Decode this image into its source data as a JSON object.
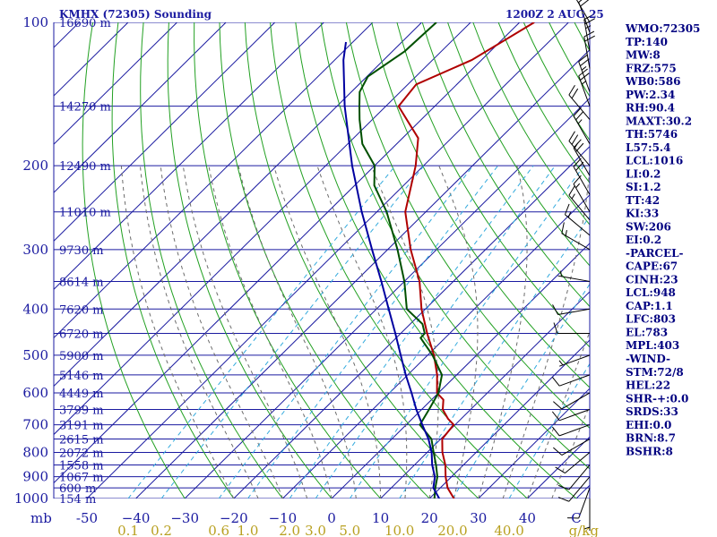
{
  "header": {
    "station": "KMHX (72305) Sounding",
    "time": "1200Z  2 AUG 25"
  },
  "chart_data": {
    "type": "skew-t",
    "p_min": 100,
    "p_max": 1000,
    "pressure_unit_label": "mb",
    "pressure_ticks": [
      {
        "p": 100,
        "label": "100"
      },
      {
        "p": 200,
        "label": "200"
      },
      {
        "p": 300,
        "label": "300"
      },
      {
        "p": 400,
        "label": "400"
      },
      {
        "p": 500,
        "label": "500"
      },
      {
        "p": 600,
        "label": "600"
      },
      {
        "p": 700,
        "label": "700"
      },
      {
        "p": 800,
        "label": "800"
      },
      {
        "p": 900,
        "label": "900"
      },
      {
        "p": 1000,
        "label": "1000"
      }
    ],
    "height_labels": [
      {
        "p": 100,
        "label": "16690 m"
      },
      {
        "p": 150,
        "label": "14270 m"
      },
      {
        "p": 200,
        "label": "12490 m"
      },
      {
        "p": 250,
        "label": "11010 m"
      },
      {
        "p": 300,
        "label": "9730 m"
      },
      {
        "p": 350,
        "label": "8614 m"
      },
      {
        "p": 400,
        "label": "7620 m"
      },
      {
        "p": 450,
        "label": "6720 m"
      },
      {
        "p": 500,
        "label": "5900 m"
      },
      {
        "p": 550,
        "label": "5146 m"
      },
      {
        "p": 600,
        "label": "4449 m"
      },
      {
        "p": 650,
        "label": "3799 m"
      },
      {
        "p": 700,
        "label": "3191 m"
      },
      {
        "p": 750,
        "label": "2615 m"
      },
      {
        "p": 800,
        "label": "2072 m"
      },
      {
        "p": 850,
        "label": "1558 m"
      },
      {
        "p": 900,
        "label": "1067 m"
      },
      {
        "p": 950,
        "label": "600 m"
      },
      {
        "p": 1000,
        "label": "154 m"
      }
    ],
    "temperature_ticks": [
      {
        "t": -50,
        "label": "-50"
      },
      {
        "t": -40,
        "label": "−40"
      },
      {
        "t": -30,
        "label": "−30"
      },
      {
        "t": -20,
        "label": "−20"
      },
      {
        "t": -10,
        "label": "−10"
      },
      {
        "t": 0,
        "label": "0"
      },
      {
        "t": 10,
        "label": "10"
      },
      {
        "t": 20,
        "label": "20"
      },
      {
        "t": 30,
        "label": "30"
      },
      {
        "t": 40,
        "label": "40"
      },
      {
        "t": 50,
        "label": "C"
      }
    ],
    "mixing_ratio_labels": [
      {
        "w": 0.1,
        "label": "0.1"
      },
      {
        "w": 0.2,
        "label": "0.2"
      },
      {
        "w": 0.6,
        "label": "0.6"
      },
      {
        "w": 1.0,
        "label": "1.0"
      },
      {
        "w": 2.0,
        "label": "2.0"
      },
      {
        "w": 3.0,
        "label": "3.0"
      },
      {
        "w": 5.0,
        "label": "5.0"
      },
      {
        "w": 10.0,
        "label": "10.0"
      },
      {
        "w": 20.0,
        "label": "20.0"
      },
      {
        "w": 40.0,
        "label": "40.0"
      }
    ],
    "mixing_ratio_unit": "g/kg",
    "series": [
      {
        "kind": "temperature",
        "color": "#b00000",
        "points": [
          [
            1000,
            25.0
          ],
          [
            950,
            21.5
          ],
          [
            900,
            18.8
          ],
          [
            850,
            16.3
          ],
          [
            800,
            13.1
          ],
          [
            750,
            10.3
          ],
          [
            700,
            9.7
          ],
          [
            680,
            7.3
          ],
          [
            650,
            4.3
          ],
          [
            620,
            2.4
          ],
          [
            600,
            -0.3
          ],
          [
            550,
            -4.0
          ],
          [
            500,
            -8.7
          ],
          [
            450,
            -14.6
          ],
          [
            400,
            -20.8
          ],
          [
            350,
            -26.9
          ],
          [
            300,
            -35.3
          ],
          [
            250,
            -44.2
          ],
          [
            200,
            -51.6
          ],
          [
            175,
            -56.8
          ],
          [
            150,
            -67.4
          ],
          [
            135,
            -68.3
          ],
          [
            120,
            -62.0
          ],
          [
            100,
            -57.0
          ]
        ]
      },
      {
        "kind": "dewpoint",
        "color": "#005000",
        "points": [
          [
            1000,
            21.0
          ],
          [
            950,
            19.0
          ],
          [
            900,
            17.1
          ],
          [
            850,
            14.4
          ],
          [
            800,
            11.3
          ],
          [
            750,
            8.1
          ],
          [
            700,
            2.8
          ],
          [
            650,
            1.5
          ],
          [
            600,
            0.0
          ],
          [
            550,
            -3.0
          ],
          [
            500,
            -9.0
          ],
          [
            460,
            -15.0
          ],
          [
            450,
            -15.1
          ],
          [
            430,
            -17.5
          ],
          [
            400,
            -23.8
          ],
          [
            350,
            -30.0
          ],
          [
            300,
            -38.0
          ],
          [
            250,
            -48.0
          ],
          [
            220,
            -56.0
          ],
          [
            200,
            -60.0
          ],
          [
            180,
            -67.0
          ],
          [
            160,
            -72.6
          ],
          [
            150,
            -75.4
          ],
          [
            140,
            -78.3
          ],
          [
            130,
            -79.8
          ],
          [
            115,
            -77.5
          ],
          [
            100,
            -77.0
          ]
        ]
      },
      {
        "kind": "parcel",
        "color": "#0000a0",
        "points": [
          [
            1000,
            22.0
          ],
          [
            950,
            18.6
          ],
          [
            900,
            16.6
          ],
          [
            850,
            13.6
          ],
          [
            800,
            10.9
          ],
          [
            750,
            7.5
          ],
          [
            700,
            3.3
          ],
          [
            650,
            -1.1
          ],
          [
            600,
            -5.5
          ],
          [
            550,
            -10.4
          ],
          [
            500,
            -15.5
          ],
          [
            450,
            -21.1
          ],
          [
            400,
            -27.5
          ],
          [
            350,
            -34.7
          ],
          [
            300,
            -43.2
          ],
          [
            250,
            -53.1
          ],
          [
            200,
            -64.6
          ],
          [
            150,
            -78.4
          ],
          [
            120,
            -88.2
          ],
          [
            110,
            -91.4
          ]
        ]
      }
    ],
    "wind_barbs": [
      {
        "p": 1000,
        "dir": 180,
        "spd": 5
      },
      {
        "p": 950,
        "dir": 200,
        "spd": 10
      },
      {
        "p": 900,
        "dir": 220,
        "spd": 10
      },
      {
        "p": 850,
        "dir": 220,
        "spd": 10
      },
      {
        "p": 800,
        "dir": 230,
        "spd": 10
      },
      {
        "p": 750,
        "dir": 240,
        "spd": 10
      },
      {
        "p": 700,
        "dir": 250,
        "spd": 10
      },
      {
        "p": 650,
        "dir": 250,
        "spd": 10
      },
      {
        "p": 600,
        "dir": 240,
        "spd": 10
      },
      {
        "p": 550,
        "dir": 250,
        "spd": 10
      },
      {
        "p": 500,
        "dir": 250,
        "spd": 5
      },
      {
        "p": 450,
        "dir": 270,
        "spd": 10
      },
      {
        "p": 400,
        "dir": 260,
        "spd": 10
      },
      {
        "p": 350,
        "dir": 280,
        "spd": 5
      },
      {
        "p": 300,
        "dir": 300,
        "spd": 15
      },
      {
        "p": 280,
        "dir": 310,
        "spd": 15
      },
      {
        "p": 260,
        "dir": 320,
        "spd": 15
      },
      {
        "p": 250,
        "dir": 330,
        "spd": 15
      },
      {
        "p": 230,
        "dir": 330,
        "spd": 20
      },
      {
        "p": 210,
        "dir": 330,
        "spd": 20
      },
      {
        "p": 200,
        "dir": 320,
        "spd": 25
      },
      {
        "p": 180,
        "dir": 330,
        "spd": 25
      },
      {
        "p": 160,
        "dir": 320,
        "spd": 20
      },
      {
        "p": 150,
        "dir": 340,
        "spd": 25
      },
      {
        "p": 140,
        "dir": 340,
        "spd": 25
      },
      {
        "p": 125,
        "dir": 350,
        "spd": 20
      },
      {
        "p": 115,
        "dir": 350,
        "spd": 25
      },
      {
        "p": 105,
        "dir": 340,
        "spd": 20
      },
      {
        "p": 100,
        "dir": 330,
        "spd": 10
      }
    ]
  },
  "indices": [
    "WMO:72305",
    "TP:140",
    "MW:8",
    "FRZ:575",
    "WB0:586",
    "PW:2.34",
    "RH:90.4",
    "MAXT:30.2",
    "TH:5746",
    "L57:5.4",
    "LCL:1016",
    "LI:0.2",
    "SI:1.2",
    "TT:42",
    "KI:33",
    "SW:206",
    "EI:0.2",
    "-PARCEL-",
    "CAPE:67",
    "CINH:23",
    "LCL:948",
    "CAP:1.1",
    "LFC:803",
    "EL:783",
    "MPL:403",
    "-WIND-",
    "STM:72/8",
    "HEL:22",
    "SHR-+:0.0",
    "SRDS:33",
    "EHI:0.0",
    "BRN:8.7",
    "BSHR:8"
  ],
  "colors": {
    "background": "#ffffff",
    "isobar": "#1a1aa0",
    "isotherm": "#1a1aa0",
    "dry_adiabat": "#22a022",
    "moist_adiabat": "#6c6c6c",
    "mixing_ratio": "#33aadd",
    "wind_label": "#b8a020",
    "index_text": "#000080"
  }
}
